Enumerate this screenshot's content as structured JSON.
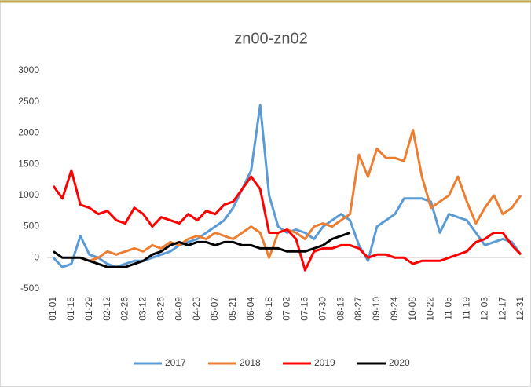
{
  "chart_data": {
    "type": "line",
    "title": "zn00-zn02",
    "categories": [
      "01-01",
      null,
      "01-15",
      null,
      "01-29",
      null,
      "02-12",
      null,
      "02-26",
      null,
      "03-12",
      null,
      "03-26",
      null,
      "04-09",
      null,
      "04-23",
      null,
      "05-07",
      null,
      "05-21",
      null,
      "06-04",
      null,
      "06-18",
      null,
      "07-02",
      null,
      "07-16",
      null,
      "07-30",
      null,
      "08-13",
      null,
      "08-27",
      null,
      "09-10",
      null,
      "09-24",
      null,
      "10-08",
      null,
      "10-22",
      null,
      "11-05",
      null,
      "11-19",
      null,
      "12-03",
      null,
      "12-17",
      null,
      "12-31"
    ],
    "series": [
      {
        "name": "2017",
        "color": "#5b9bd5",
        "values": [
          0,
          -150,
          -100,
          350,
          50,
          0,
          -100,
          -150,
          -100,
          -50,
          -50,
          0,
          50,
          100,
          200,
          250,
          300,
          400,
          500,
          600,
          800,
          1100,
          1400,
          2450,
          1000,
          500,
          400,
          450,
          400,
          300,
          500,
          600,
          700,
          600,
          200,
          -50,
          500,
          600,
          700,
          950,
          950,
          950,
          900,
          400,
          700,
          650,
          600,
          400,
          200,
          250,
          300,
          250,
          50
        ]
      },
      {
        "name": "2018",
        "color": "#ed7d31",
        "values": [
          null,
          null,
          null,
          0,
          -50,
          0,
          100,
          50,
          100,
          150,
          100,
          200,
          150,
          250,
          200,
          300,
          350,
          300,
          400,
          350,
          300,
          400,
          500,
          400,
          0,
          400,
          450,
          400,
          300,
          500,
          550,
          500,
          600,
          700,
          1650,
          1300,
          1750,
          1600,
          1600,
          1550,
          2050,
          1300,
          800,
          900,
          1000,
          1300,
          900,
          550,
          800,
          1000,
          700,
          800,
          1000
        ]
      },
      {
        "name": "2019",
        "color": "#ff0000",
        "values": [
          1150,
          950,
          1400,
          850,
          800,
          700,
          750,
          600,
          550,
          800,
          700,
          500,
          650,
          600,
          550,
          700,
          600,
          750,
          700,
          850,
          900,
          1100,
          1300,
          1100,
          400,
          400,
          450,
          300,
          -200,
          100,
          150,
          150,
          200,
          200,
          150,
          0,
          50,
          50,
          0,
          0,
          -100,
          -50,
          -50,
          -50,
          0,
          50,
          100,
          250,
          300,
          400,
          400,
          200,
          50
        ]
      },
      {
        "name": "2020",
        "color": "#000000",
        "values": [
          100,
          0,
          0,
          0,
          -50,
          -100,
          -150,
          -150,
          -150,
          -100,
          -50,
          50,
          100,
          200,
          250,
          200,
          250,
          250,
          200,
          250,
          250,
          200,
          200,
          150,
          150,
          150,
          100,
          100,
          100,
          150,
          200,
          300,
          350,
          400,
          null,
          null,
          null,
          null,
          null,
          null,
          null,
          null,
          null,
          null,
          null,
          null,
          null,
          null,
          null,
          null,
          null,
          null,
          null
        ]
      }
    ],
    "ylim": [
      -500,
      3000
    ],
    "yticks": [
      -500,
      0,
      500,
      1000,
      1500,
      2000,
      2500,
      3000
    ],
    "grid": false,
    "legend": "bottom"
  }
}
